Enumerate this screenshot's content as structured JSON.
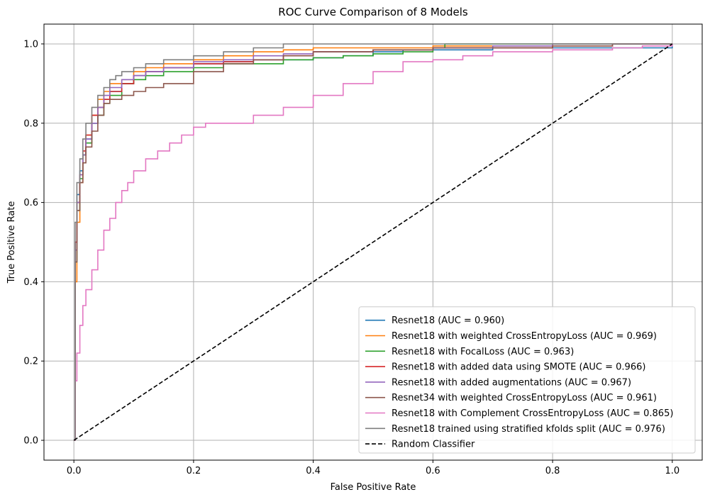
{
  "chart_data": {
    "type": "line",
    "title": "ROC Curve Comparison of 8 Models",
    "xlabel": "False Positive Rate",
    "ylabel": "True Positive Rate",
    "xlim": [
      -0.05,
      1.05
    ],
    "ylim": [
      -0.05,
      1.05
    ],
    "xticks": [
      "0.0",
      "0.2",
      "0.4",
      "0.6",
      "0.8",
      "1.0"
    ],
    "yticks": [
      "0.0",
      "0.2",
      "0.4",
      "0.6",
      "0.8",
      "1.0"
    ],
    "grid": true,
    "legend_position": "lower-right",
    "series": [
      {
        "name": "Resnet18 (AUC = 0.960)",
        "color": "#1f77b4",
        "x": [
          0,
          0.002,
          0.005,
          0.01,
          0.015,
          0.02,
          0.03,
          0.04,
          0.05,
          0.06,
          0.08,
          0.1,
          0.12,
          0.15,
          0.2,
          0.25,
          0.3,
          0.35,
          0.4,
          0.45,
          0.48,
          0.5,
          0.55,
          0.6,
          0.7,
          0.8,
          0.9,
          1.0
        ],
        "y": [
          0,
          0.5,
          0.62,
          0.68,
          0.72,
          0.76,
          0.8,
          0.84,
          0.86,
          0.88,
          0.9,
          0.92,
          0.93,
          0.94,
          0.95,
          0.955,
          0.96,
          0.96,
          0.965,
          0.97,
          0.97,
          0.98,
          0.985,
          0.985,
          0.99,
          0.99,
          0.99,
          1.0
        ]
      },
      {
        "name": "Resnet18 with weighted CrossEntropyLoss (AUC = 0.969)",
        "color": "#ff7f0e",
        "x": [
          0,
          0.002,
          0.005,
          0.01,
          0.015,
          0.02,
          0.03,
          0.04,
          0.05,
          0.06,
          0.08,
          0.1,
          0.12,
          0.15,
          0.2,
          0.25,
          0.3,
          0.35,
          0.4,
          0.5,
          0.6,
          0.7,
          0.8,
          0.9,
          1.0
        ],
        "y": [
          0,
          0.4,
          0.55,
          0.65,
          0.72,
          0.77,
          0.82,
          0.86,
          0.88,
          0.9,
          0.91,
          0.93,
          0.94,
          0.95,
          0.96,
          0.97,
          0.98,
          0.985,
          0.99,
          0.99,
          0.995,
          0.995,
          1.0,
          1.0,
          1.0
        ]
      },
      {
        "name": "Resnet18 with FocalLoss (AUC = 0.963)",
        "color": "#2ca02c",
        "x": [
          0,
          0.002,
          0.005,
          0.01,
          0.015,
          0.02,
          0.03,
          0.04,
          0.05,
          0.06,
          0.08,
          0.1,
          0.12,
          0.15,
          0.2,
          0.25,
          0.3,
          0.35,
          0.4,
          0.45,
          0.5,
          0.55,
          0.6,
          0.62,
          0.7,
          0.8,
          0.9,
          1.0
        ],
        "y": [
          0,
          0.45,
          0.58,
          0.66,
          0.72,
          0.75,
          0.8,
          0.82,
          0.85,
          0.87,
          0.9,
          0.91,
          0.92,
          0.93,
          0.94,
          0.95,
          0.95,
          0.96,
          0.965,
          0.97,
          0.975,
          0.98,
          0.99,
          1.0,
          1.0,
          1.0,
          1.0,
          1.0
        ]
      },
      {
        "name": "Resnet18 with added data using SMOTE (AUC = 0.966)",
        "color": "#d62728",
        "x": [
          0,
          0.002,
          0.005,
          0.01,
          0.015,
          0.02,
          0.03,
          0.04,
          0.05,
          0.06,
          0.08,
          0.1,
          0.12,
          0.15,
          0.2,
          0.25,
          0.3,
          0.35,
          0.4,
          0.5,
          0.6,
          0.7,
          0.8,
          0.9,
          1.0
        ],
        "y": [
          0,
          0.5,
          0.6,
          0.67,
          0.73,
          0.77,
          0.82,
          0.84,
          0.86,
          0.88,
          0.9,
          0.92,
          0.93,
          0.94,
          0.95,
          0.955,
          0.96,
          0.97,
          0.98,
          0.985,
          0.99,
          0.99,
          0.995,
          1.0,
          1.0
        ]
      },
      {
        "name": "Resnet18 with added augmentations (AUC = 0.967)",
        "color": "#9467bd",
        "x": [
          0,
          0.002,
          0.005,
          0.01,
          0.015,
          0.02,
          0.03,
          0.04,
          0.05,
          0.06,
          0.08,
          0.1,
          0.12,
          0.15,
          0.2,
          0.25,
          0.3,
          0.35,
          0.4,
          0.5,
          0.6,
          0.7,
          0.8,
          0.9,
          1.0
        ],
        "y": [
          0,
          0.48,
          0.6,
          0.67,
          0.72,
          0.76,
          0.8,
          0.84,
          0.87,
          0.89,
          0.91,
          0.92,
          0.93,
          0.94,
          0.955,
          0.96,
          0.97,
          0.975,
          0.98,
          0.985,
          0.99,
          0.995,
          1.0,
          1.0,
          1.0
        ]
      },
      {
        "name": "Resnet34 with weighted CrossEntropyLoss (AUC = 0.961)",
        "color": "#8c564b",
        "x": [
          0,
          0.002,
          0.005,
          0.01,
          0.015,
          0.02,
          0.03,
          0.04,
          0.05,
          0.06,
          0.08,
          0.1,
          0.12,
          0.15,
          0.2,
          0.25,
          0.3,
          0.35,
          0.4,
          0.5,
          0.6,
          0.7,
          0.8,
          0.9,
          1.0
        ],
        "y": [
          0,
          0.45,
          0.58,
          0.65,
          0.7,
          0.74,
          0.78,
          0.82,
          0.85,
          0.86,
          0.87,
          0.88,
          0.89,
          0.9,
          0.93,
          0.95,
          0.96,
          0.97,
          0.98,
          0.985,
          0.99,
          0.99,
          0.995,
          1.0,
          1.0
        ]
      },
      {
        "name": "Resnet18 with Complement CrossEntropyLoss (AUC = 0.865)",
        "color": "#e377c2",
        "x": [
          0,
          0.002,
          0.005,
          0.01,
          0.015,
          0.02,
          0.03,
          0.04,
          0.05,
          0.06,
          0.07,
          0.08,
          0.09,
          0.1,
          0.12,
          0.14,
          0.16,
          0.18,
          0.2,
          0.22,
          0.25,
          0.3,
          0.35,
          0.4,
          0.45,
          0.5,
          0.55,
          0.6,
          0.65,
          0.7,
          0.8,
          0.9,
          0.95,
          1.0
        ],
        "y": [
          0,
          0.15,
          0.22,
          0.29,
          0.34,
          0.38,
          0.43,
          0.48,
          0.53,
          0.56,
          0.6,
          0.63,
          0.65,
          0.68,
          0.71,
          0.73,
          0.75,
          0.77,
          0.79,
          0.8,
          0.8,
          0.82,
          0.84,
          0.87,
          0.9,
          0.93,
          0.955,
          0.96,
          0.97,
          0.98,
          0.985,
          0.99,
          0.995,
          1.0
        ]
      },
      {
        "name": "Resnet18 trained using stratified kfolds split (AUC = 0.976)",
        "color": "#7f7f7f",
        "x": [
          0,
          0.002,
          0.005,
          0.01,
          0.015,
          0.02,
          0.03,
          0.04,
          0.05,
          0.06,
          0.07,
          0.08,
          0.1,
          0.12,
          0.15,
          0.2,
          0.25,
          0.3,
          0.35,
          0.4,
          0.5,
          0.6,
          0.7,
          0.8,
          0.9,
          1.0
        ],
        "y": [
          0,
          0.55,
          0.65,
          0.71,
          0.76,
          0.8,
          0.84,
          0.87,
          0.89,
          0.91,
          0.92,
          0.93,
          0.94,
          0.95,
          0.96,
          0.97,
          0.98,
          0.99,
          1.0,
          1.0,
          1.0,
          1.0,
          1.0,
          1.0,
          1.0,
          1.0
        ]
      },
      {
        "name": "Random Classifier",
        "color": "#000000",
        "dashed": true,
        "x": [
          0,
          1
        ],
        "y": [
          0,
          1
        ]
      }
    ]
  }
}
